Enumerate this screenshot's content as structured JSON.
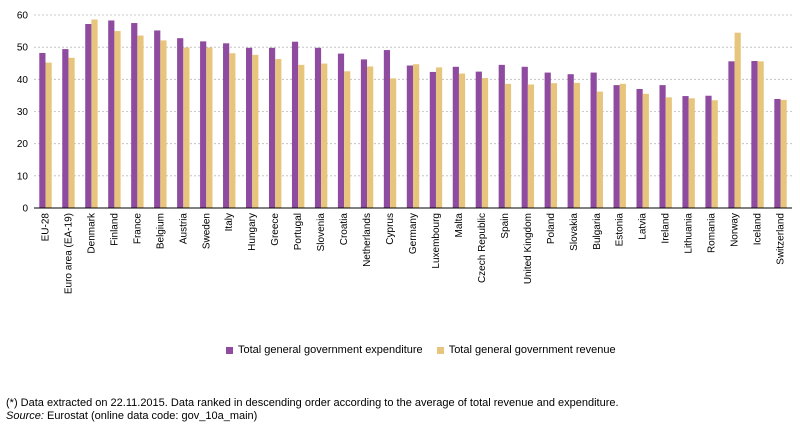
{
  "chart_data": {
    "type": "bar",
    "categories": [
      "EU-28",
      "Euro area (EA-19)",
      "Denmark",
      "Finland",
      "France",
      "Belgium",
      "Austria",
      "Sweden",
      "Italy",
      "Hungary",
      "Greece",
      "Portugal",
      "Slovenia",
      "Croatia",
      "Netherlands",
      "Cyprus",
      "Germany",
      "Luxembourg",
      "Malta",
      "Czech Republic",
      "Spain",
      "United Kingdom",
      "Poland",
      "Slovakia",
      "Bulgaria",
      "Estonia",
      "Latvia",
      "Ireland",
      "Lithuania",
      "Romania",
      "Norway",
      "Iceland",
      "Switzerland"
    ],
    "series": [
      {
        "name": "Total general government expenditure",
        "values": [
          48.2,
          49.4,
          57.2,
          58.3,
          57.5,
          55.2,
          52.8,
          51.8,
          51.2,
          49.8,
          49.8,
          51.7,
          49.8,
          48.0,
          46.2,
          49.1,
          44.3,
          42.3,
          43.9,
          42.4,
          44.5,
          43.9,
          42.1,
          41.6,
          42.1,
          38.2,
          37.0,
          38.2,
          34.8,
          34.9,
          45.6,
          45.7,
          33.9
        ]
      },
      {
        "name": "Total general government revenue",
        "values": [
          45.2,
          46.7,
          58.6,
          55.0,
          53.6,
          52.1,
          49.9,
          49.9,
          48.1,
          47.6,
          46.3,
          44.5,
          44.9,
          42.5,
          44.0,
          40.3,
          44.7,
          43.7,
          41.8,
          40.4,
          38.6,
          38.4,
          38.8,
          38.9,
          36.2,
          38.6,
          35.5,
          34.4,
          34.1,
          33.5,
          54.5,
          45.6,
          33.6
        ]
      }
    ],
    "colors": [
      "#8e4ba0",
      "#e7c57c"
    ],
    "ylim": [
      0,
      60
    ],
    "yticks": [
      0,
      10,
      20,
      30,
      40,
      50,
      60
    ],
    "grid": true,
    "legend": "bottom"
  },
  "footnote": {
    "note": "(*) Data extracted on 22.11.2015. Data ranked in descending order according to the average of total revenue and expenditure.",
    "source_label": "Source:",
    "source_text": " Eurostat (online data code: gov_10a_main)"
  }
}
